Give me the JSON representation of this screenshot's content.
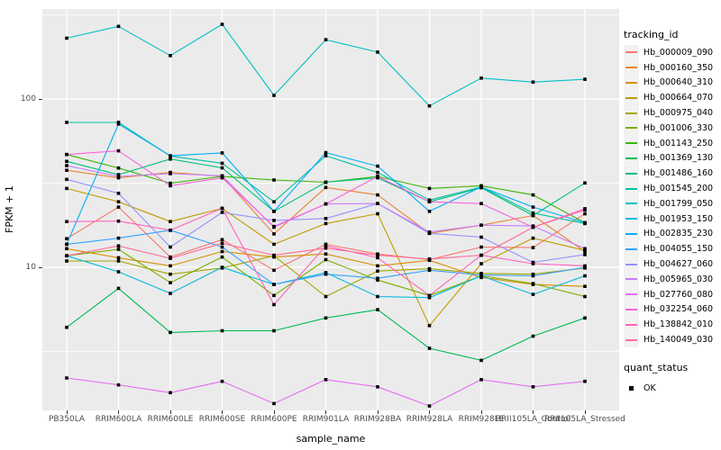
{
  "chart_data": {
    "type": "line",
    "title": "",
    "xlabel": "sample_name",
    "ylabel": "FPKM + 1",
    "y_scale": "log10",
    "ylim": [
      1.4,
      340
    ],
    "y_ticks": [
      {
        "label": "100",
        "value": 100
      },
      {
        "label": "10",
        "value": 10
      }
    ],
    "grid": "on",
    "panel_bg": "#EBEBEB",
    "grid_color": "#FFFFFF",
    "point_marker": "filled-square",
    "point_color": "#000000",
    "categories": [
      "PB350LA",
      "RRIM600LA",
      "RRIM600LE",
      "RRIM600SE",
      "RRIM600PE",
      "RRIM901LA",
      "RRIM928BA",
      "RRIM928LA",
      "RRIM928LE",
      "RRII105LA_Control",
      "RRII105LA_Stressed"
    ],
    "legend": {
      "title": "tracking_id",
      "position": "right"
    },
    "legend2": {
      "title": "quant_status",
      "items": [
        "OK"
      ]
    },
    "series": [
      {
        "name": "Hb_000009_090",
        "color": "#F8766D",
        "values": [
          14.8,
          22.8,
          11.5,
          14.6,
          9.6,
          13.7,
          12,
          11.1,
          13.2,
          13.1,
          20.8
        ]
      },
      {
        "name": "Hb_000160_350",
        "color": "#EA8331",
        "values": [
          37.7,
          34,
          36.6,
          34.7,
          15.8,
          29.8,
          26.9,
          15.9,
          17.8,
          20.3,
          12.4
        ]
      },
      {
        "name": "Hb_000640_310",
        "color": "#D89000",
        "values": [
          12.9,
          11.4,
          10.2,
          12.4,
          11.5,
          12,
          10.2,
          11,
          8.7,
          7.9,
          7.7
        ]
      },
      {
        "name": "Hb_000664_070",
        "color": "#C09B00",
        "values": [
          29.4,
          24.5,
          18.7,
          22.4,
          13.7,
          18.2,
          20.8,
          4.5,
          10.5,
          14.9,
          12.6
        ]
      },
      {
        "name": "Hb_000975_040",
        "color": "#A3A500",
        "values": [
          10.9,
          10.9,
          9.1,
          9.9,
          11.7,
          6.7,
          9.5,
          9.8,
          9.2,
          9.1,
          9.9
        ]
      },
      {
        "name": "Hb_001006_330",
        "color": "#7CAE00",
        "values": [
          11.7,
          12.8,
          8.1,
          11.5,
          6.8,
          11.1,
          8.4,
          6.8,
          8.9,
          8,
          6.7
        ]
      },
      {
        "name": "Hb_001143_250",
        "color": "#39B600",
        "values": [
          46.8,
          38.9,
          31.6,
          34.7,
          33,
          32,
          34.7,
          29.4,
          30.5,
          26.9,
          18.4
        ]
      },
      {
        "name": "Hb_001369_130",
        "color": "#00BB4E",
        "values": [
          4.4,
          7.5,
          4.1,
          4.2,
          4.2,
          5,
          5.6,
          3.3,
          2.8,
          3.9,
          5
        ]
      },
      {
        "name": "Hb_001486_160",
        "color": "#00BF7D",
        "values": [
          42.6,
          35.5,
          44,
          39,
          21.5,
          32,
          34,
          24.5,
          29.7,
          20.3,
          31.7
        ]
      },
      {
        "name": "Hb_001545_200",
        "color": "#00C1A3",
        "values": [
          72.6,
          72.6,
          45.8,
          41.5,
          24.5,
          46,
          36.6,
          25.1,
          30,
          21,
          18.2
        ]
      },
      {
        "name": "Hb_001799_050",
        "color": "#00BFC4",
        "values": [
          230,
          270,
          181,
          278,
          105,
          225,
          190,
          91,
          133,
          126,
          131
        ]
      },
      {
        "name": "Hb_001953_150",
        "color": "#00BAE0",
        "values": [
          11.7,
          9.4,
          7,
          10,
          7.9,
          9.3,
          6.7,
          6.6,
          8.9,
          6.9,
          8.9
        ]
      },
      {
        "name": "Hb_002835_230",
        "color": "#00B0F6",
        "values": [
          13.7,
          71,
          46,
          47.8,
          21.5,
          48,
          39.9,
          21.5,
          30,
          22.8,
          18.4
        ]
      },
      {
        "name": "Hb_004055_150",
        "color": "#35A2FF",
        "values": [
          13.7,
          14.9,
          16.6,
          13.2,
          7.9,
          9.1,
          8.6,
          9.6,
          9,
          8.9,
          10
        ]
      },
      {
        "name": "Hb_004627_060",
        "color": "#9590FF",
        "values": [
          33.3,
          27.5,
          13.2,
          21.2,
          19,
          19.5,
          23.9,
          15.9,
          15.1,
          10.7,
          11.9
        ]
      },
      {
        "name": "Hb_005965_030",
        "color": "#C77CFF",
        "values": [
          40.2,
          34.7,
          36,
          35,
          17.3,
          23.8,
          23.9,
          16.2,
          17.8,
          17.6,
          12.9
        ]
      },
      {
        "name": "Hb_027760_080",
        "color": "#E76BF3",
        "values": [
          2.2,
          2,
          1.8,
          2.1,
          1.55,
          2.15,
          1.95,
          1.5,
          2.15,
          1.95,
          2.1
        ]
      },
      {
        "name": "Hb_032254_060",
        "color": "#FA62DB",
        "values": [
          46.8,
          49.2,
          30.5,
          34,
          17.5,
          23.8,
          34.7,
          24.5,
          23.9,
          17.3,
          22.3
        ]
      },
      {
        "name": "Hb_138842_010",
        "color": "#FF62BC",
        "values": [
          18.7,
          18.8,
          16.6,
          22.4,
          6,
          13.4,
          11.4,
          6.8,
          11.8,
          10.5,
          10.2
        ]
      },
      {
        "name": "Hb_140049_030",
        "color": "#FF6A98",
        "values": [
          11.7,
          13.4,
          11.3,
          13.9,
          11.8,
          13,
          11.8,
          11.2,
          11.8,
          17.3,
          21.9
        ]
      }
    ]
  }
}
